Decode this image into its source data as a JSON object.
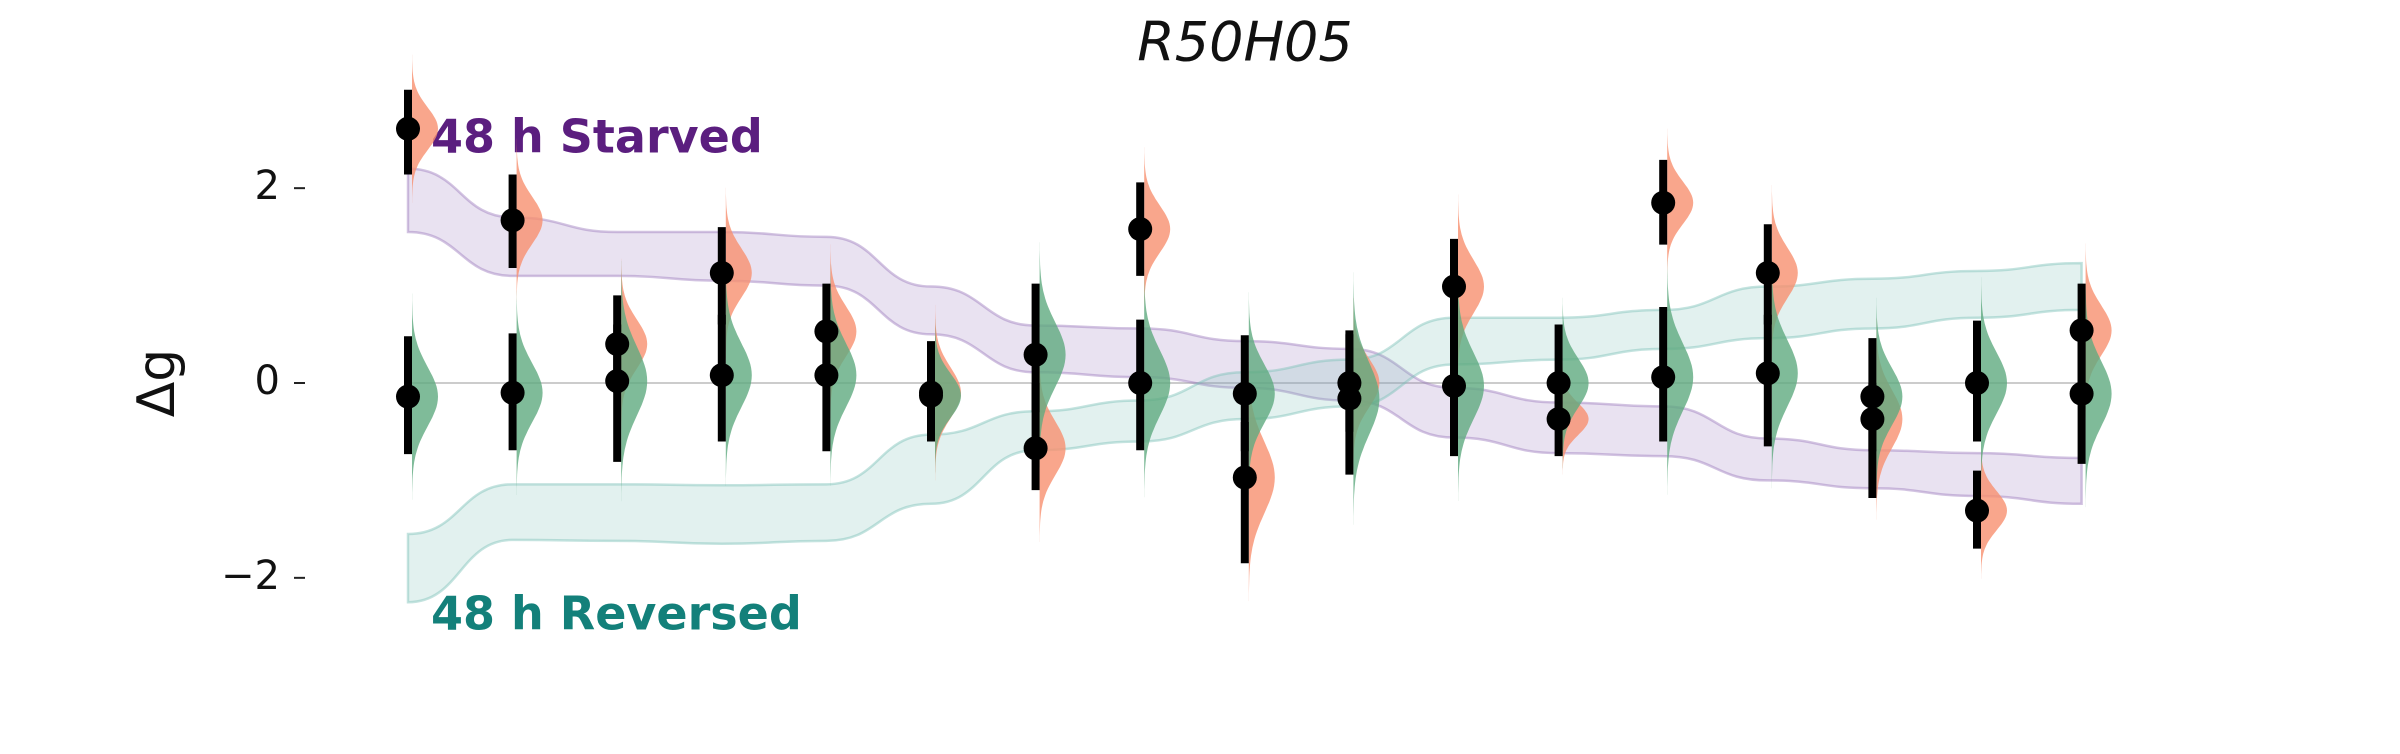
{
  "chart_data": {
    "type": "interval",
    "title": "R50H05",
    "y_label": "Δg",
    "categories": [
      null,
      null,
      null,
      null,
      null,
      null,
      null,
      null,
      null,
      null,
      null,
      null,
      null,
      null,
      null,
      null,
      null
    ],
    "ylim": [
      -3.1,
      3.1
    ],
    "yticks": [
      {
        "value": -2,
        "label": "−2"
      },
      0,
      2
    ],
    "zero_line": true,
    "series": [
      {
        "color": "#f8906f",
        "values": [
          2.61,
          1.67,
          0.4,
          1.13,
          0.53,
          -0.1,
          -0.67,
          1.58,
          -0.97,
          0.0,
          0.99,
          -0.37,
          1.85,
          1.13,
          -0.37,
          -1.31,
          0.54
        ],
        "lower": [
          2.14,
          1.18,
          -0.1,
          0.6,
          0.0,
          -0.6,
          -1.1,
          1.1,
          -1.85,
          -0.5,
          0.4,
          -0.75,
          1.42,
          0.6,
          -1.18,
          -1.7,
          0.0
        ],
        "upper": [
          3.01,
          2.14,
          0.9,
          1.6,
          1.02,
          0.43,
          0.0,
          2.06,
          -0.4,
          0.5,
          1.48,
          -0.1,
          2.29,
          1.63,
          0.0,
          -0.9,
          1.02
        ]
      },
      {
        "color": "#5faa80",
        "values": [
          -0.14,
          -0.1,
          0.02,
          0.08,
          0.08,
          -0.13,
          0.29,
          0.0,
          -0.11,
          -0.16,
          -0.03,
          0.0,
          0.06,
          0.1,
          -0.14,
          0.0,
          -0.11
        ],
        "lower": [
          -0.73,
          -0.69,
          -0.81,
          -0.6,
          -0.7,
          -0.6,
          -0.3,
          -0.69,
          -0.7,
          -0.94,
          -0.75,
          -0.4,
          -0.6,
          -0.65,
          -0.7,
          -0.6,
          -0.83
        ],
        "upper": [
          0.48,
          0.51,
          0.6,
          0.7,
          0.6,
          0.3,
          1.02,
          0.65,
          0.49,
          0.54,
          0.6,
          0.6,
          0.78,
          0.7,
          0.46,
          0.64,
          0.5
        ]
      }
    ],
    "bands": [
      {
        "label": "48 h Starved",
        "color": "#5b1e7f",
        "fill": "#9b7bbd",
        "lower": [
          1.55,
          1.1,
          1.1,
          1.05,
          1.0,
          0.5,
          0.11,
          0.06,
          -0.05,
          -0.18,
          -0.56,
          -0.72,
          -0.75,
          -1.0,
          -1.08,
          -1.16,
          -1.24
        ],
        "upper": [
          2.2,
          1.7,
          1.55,
          1.55,
          1.5,
          0.99,
          0.59,
          0.56,
          0.43,
          0.35,
          -0.05,
          -0.2,
          -0.24,
          -0.57,
          -0.69,
          -0.72,
          -0.77
        ]
      },
      {
        "label": "48 h Reversed",
        "color": "#13807a",
        "fill": "#7cc1b8",
        "lower": [
          -2.25,
          -1.61,
          -1.62,
          -1.65,
          -1.62,
          -1.24,
          -0.69,
          -0.6,
          -0.37,
          -0.24,
          0.19,
          0.24,
          0.35,
          0.46,
          0.56,
          0.67,
          0.75
        ],
        "upper": [
          -1.55,
          -1.04,
          -1.04,
          -1.05,
          -1.04,
          -0.53,
          -0.29,
          -0.18,
          0.11,
          0.24,
          0.67,
          0.67,
          0.75,
          0.99,
          1.07,
          1.15,
          1.23
        ]
      }
    ]
  }
}
